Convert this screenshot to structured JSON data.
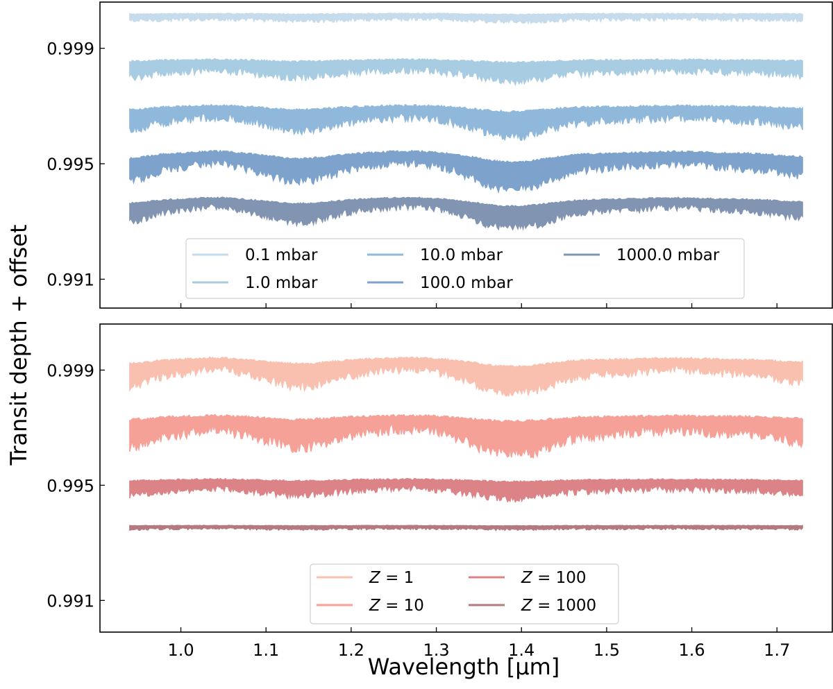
{
  "figure": {
    "ylabel": "Transit depth + offset",
    "xlabel": "Wavelength [µm]"
  },
  "chart_data": [
    {
      "type": "line",
      "panel": "top",
      "title": "",
      "xlabel": "Wavelength [µm]",
      "ylabel": "Transit depth + offset",
      "xlim": [
        0.905,
        1.765
      ],
      "ylim": [
        0.99,
        1.0006
      ],
      "x_ticks": [
        1.0,
        1.1,
        1.2,
        1.3,
        1.4,
        1.5,
        1.6,
        1.7
      ],
      "x_tick_labels": [],
      "y_ticks": [
        0.999,
        0.995,
        0.991
      ],
      "y_tick_labels": [
        "0.999",
        "0.995",
        "0.991"
      ],
      "legend_position": "lower-center",
      "legend_columns": 3,
      "x_range": [
        0.94,
        1.73
      ],
      "series": [
        {
          "name": "0.1 mbar",
          "label": "0.1 mbar",
          "color": "#c6dcec",
          "baseline": 1.0002,
          "min_depth": 0.99985,
          "noise_band": 0.0004,
          "strength": 0.2
        },
        {
          "name": "1.0 mbar",
          "label": "1.0 mbar",
          "color": "#a8cce2",
          "baseline": 0.9986,
          "min_depth": 0.99808,
          "noise_band": 0.0008,
          "strength": 0.42
        },
        {
          "name": "10.0 mbar",
          "label": "10.0 mbar",
          "color": "#90b8da",
          "baseline": 0.997,
          "min_depth": 0.99625,
          "noise_band": 0.0009,
          "strength": 0.64
        },
        {
          "name": "100.0 mbar",
          "label": "100.0 mbar",
          "color": "#7da2cb",
          "baseline": 0.9954,
          "min_depth": 0.99435,
          "noise_band": 0.0009,
          "strength": 0.82
        },
        {
          "name": "1000.0 mbar",
          "label": "1000.0 mbar",
          "color": "#8194b2",
          "baseline": 0.9938,
          "min_depth": 0.99305,
          "noise_band": 0.0007,
          "strength": 0.92
        }
      ]
    },
    {
      "type": "line",
      "panel": "bottom",
      "title": "",
      "xlabel": "Wavelength [µm]",
      "ylabel": "Transit depth + offset",
      "xlim": [
        0.905,
        1.765
      ],
      "ylim": [
        0.9899,
        1.0006
      ],
      "x_ticks": [
        1.0,
        1.1,
        1.2,
        1.3,
        1.4,
        1.5,
        1.6,
        1.7
      ],
      "x_tick_labels": [
        "1.0",
        "1.1",
        "1.2",
        "1.3",
        "1.4",
        "1.5",
        "1.6",
        "1.7"
      ],
      "y_ticks": [
        0.999,
        0.995,
        0.991
      ],
      "y_tick_labels": [
        "0.999",
        "0.995",
        "0.991"
      ],
      "legend_position": "lower-center",
      "legend_columns": 2,
      "x_range": [
        0.94,
        1.73
      ],
      "series": [
        {
          "name": "Z = 1",
          "label_prefix": "Z",
          "label_suffix": " = 1",
          "color": "#f9c0b0",
          "baseline": 0.9994,
          "min_depth": 0.99855,
          "noise_band": 0.0009,
          "strength": 0.82
        },
        {
          "name": "Z = 10",
          "label_prefix": "Z",
          "label_suffix": " = 10",
          "color": "#f5a198",
          "baseline": 0.9974,
          "min_depth": 0.99685,
          "noise_band": 0.0011,
          "strength": 0.82
        },
        {
          "name": "Z = 100",
          "label_prefix": "Z",
          "label_suffix": " = 100",
          "color": "#dc8387",
          "baseline": 0.9952,
          "min_depth": 0.9948,
          "noise_band": 0.0007,
          "strength": 0.48
        },
        {
          "name": "Z = 1000",
          "label_prefix": "Z",
          "label_suffix": " = 1000",
          "color": "#b47a80",
          "baseline": 0.9936,
          "min_depth": 0.99345,
          "noise_band": 0.00022,
          "strength": 0.15
        }
      ]
    }
  ]
}
